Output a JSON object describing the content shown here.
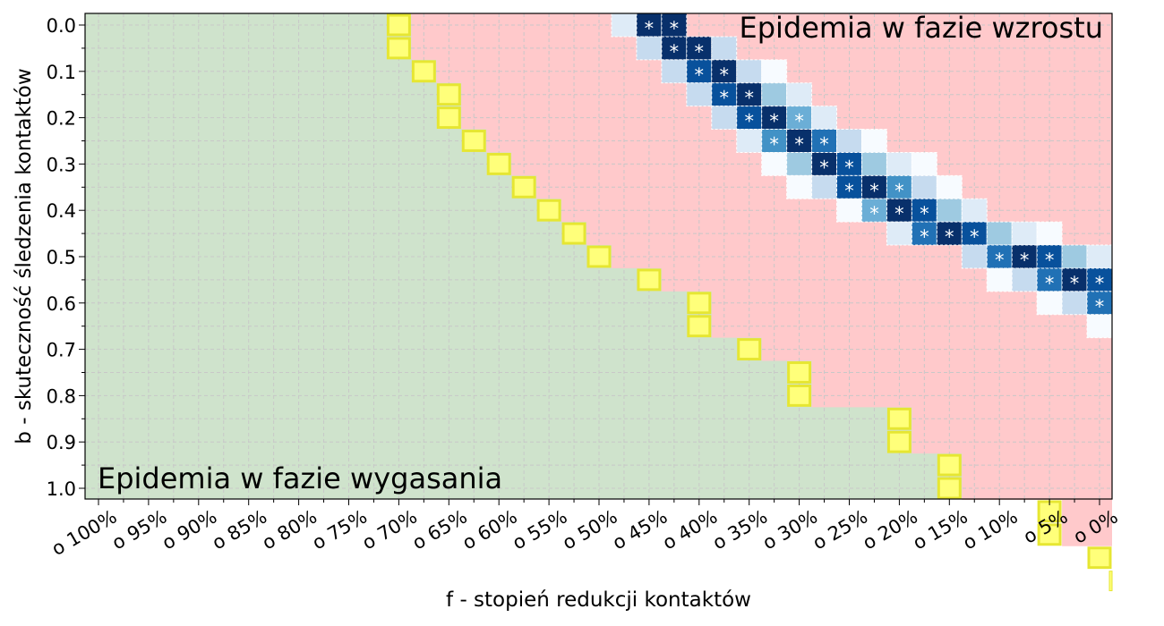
{
  "chart_data": {
    "type": "heatmap",
    "title": "",
    "xlabel": "f - stopień redukcji kontaktów",
    "ylabel": "b - skuteczność śledzenia kontaktów",
    "x_tick_labels": [
      "o 100%",
      "o 95%",
      "o 90%",
      "o 85%",
      "o 80%",
      "o 75%",
      "o 70%",
      "o 65%",
      "o 60%",
      "o 55%",
      "o 50%",
      "o 45%",
      "o 40%",
      "o 35%",
      "o 30%",
      "o 25%",
      "o 20%",
      "o 15%",
      "o 10%",
      "o 5%",
      "o 0%"
    ],
    "y_tick_labels": [
      "0.0",
      "0.1",
      "0.2",
      "0.3",
      "0.4",
      "0.5",
      "0.6",
      "0.7",
      "0.8",
      "0.9",
      "1.0"
    ],
    "x_range": [
      0,
      1
    ],
    "y_range": [
      0,
      1
    ],
    "y_inverted": true,
    "grid": true,
    "grid_step_x": 0.025,
    "grid_step_y": 0.05,
    "annotations": [
      "Epidemia w fazie wzrostu",
      "Epidemia w fazie wygasania"
    ],
    "colors": {
      "decline_region": "#cfe3cc",
      "growth_region": "#ffc9cb",
      "threshold_cell": "#ffff7a",
      "threshold_border": "#e6e632",
      "grid": "#c8c8c8",
      "blues": [
        "#f7fbff",
        "#deebf7",
        "#c6dbef",
        "#9ecae1",
        "#6baed6",
        "#4292c6",
        "#2171b5",
        "#08519c",
        "#08306b"
      ]
    },
    "boundary_f": [
      0.7,
      0.7,
      0.675,
      0.65,
      0.65,
      0.625,
      0.6,
      0.575,
      0.55,
      0.525,
      0.5,
      0.45,
      0.4,
      0.4,
      0.35,
      0.3,
      0.3,
      0.2,
      0.2,
      0.15,
      0.15,
      0.05,
      0.05,
      0.0,
      0.0
    ],
    "star_symbol": "*",
    "heat_cells": [
      {
        "b": 0.0,
        "f": 0.475,
        "level": 1,
        "star": false
      },
      {
        "b": 0.0,
        "f": 0.45,
        "level": 8,
        "star": true
      },
      {
        "b": 0.0,
        "f": 0.425,
        "level": 8,
        "star": true
      },
      {
        "b": 0.05,
        "f": 0.45,
        "level": 2,
        "star": false
      },
      {
        "b": 0.05,
        "f": 0.425,
        "level": 8,
        "star": true
      },
      {
        "b": 0.05,
        "f": 0.4,
        "level": 8,
        "star": true
      },
      {
        "b": 0.05,
        "f": 0.375,
        "level": 2,
        "star": false
      },
      {
        "b": 0.1,
        "f": 0.425,
        "level": 2,
        "star": false
      },
      {
        "b": 0.1,
        "f": 0.4,
        "level": 7,
        "star": true
      },
      {
        "b": 0.1,
        "f": 0.375,
        "level": 8,
        "star": true
      },
      {
        "b": 0.1,
        "f": 0.35,
        "level": 2,
        "star": false
      },
      {
        "b": 0.1,
        "f": 0.325,
        "level": 0,
        "star": false
      },
      {
        "b": 0.15,
        "f": 0.4,
        "level": 2,
        "star": false
      },
      {
        "b": 0.15,
        "f": 0.375,
        "level": 7,
        "star": true
      },
      {
        "b": 0.15,
        "f": 0.35,
        "level": 8,
        "star": true
      },
      {
        "b": 0.15,
        "f": 0.325,
        "level": 3,
        "star": false
      },
      {
        "b": 0.15,
        "f": 0.3,
        "level": 1,
        "star": false
      },
      {
        "b": 0.2,
        "f": 0.375,
        "level": 2,
        "star": false
      },
      {
        "b": 0.2,
        "f": 0.35,
        "level": 7,
        "star": true
      },
      {
        "b": 0.2,
        "f": 0.325,
        "level": 8,
        "star": true
      },
      {
        "b": 0.2,
        "f": 0.3,
        "level": 4,
        "star": true
      },
      {
        "b": 0.2,
        "f": 0.275,
        "level": 1,
        "star": false
      },
      {
        "b": 0.25,
        "f": 0.35,
        "level": 1,
        "star": false
      },
      {
        "b": 0.25,
        "f": 0.325,
        "level": 5,
        "star": true
      },
      {
        "b": 0.25,
        "f": 0.3,
        "level": 8,
        "star": true
      },
      {
        "b": 0.25,
        "f": 0.275,
        "level": 6,
        "star": true
      },
      {
        "b": 0.25,
        "f": 0.25,
        "level": 2,
        "star": false
      },
      {
        "b": 0.25,
        "f": 0.225,
        "level": 0,
        "star": false
      },
      {
        "b": 0.3,
        "f": 0.325,
        "level": 0,
        "star": false
      },
      {
        "b": 0.3,
        "f": 0.3,
        "level": 3,
        "star": false
      },
      {
        "b": 0.3,
        "f": 0.275,
        "level": 8,
        "star": true
      },
      {
        "b": 0.3,
        "f": 0.25,
        "level": 7,
        "star": true
      },
      {
        "b": 0.3,
        "f": 0.225,
        "level": 3,
        "star": false
      },
      {
        "b": 0.3,
        "f": 0.2,
        "level": 1,
        "star": false
      },
      {
        "b": 0.3,
        "f": 0.175,
        "level": 0,
        "star": false
      },
      {
        "b": 0.35,
        "f": 0.3,
        "level": 0,
        "star": false
      },
      {
        "b": 0.35,
        "f": 0.275,
        "level": 2,
        "star": false
      },
      {
        "b": 0.35,
        "f": 0.25,
        "level": 7,
        "star": true
      },
      {
        "b": 0.35,
        "f": 0.225,
        "level": 8,
        "star": true
      },
      {
        "b": 0.35,
        "f": 0.2,
        "level": 5,
        "star": true
      },
      {
        "b": 0.35,
        "f": 0.175,
        "level": 2,
        "star": false
      },
      {
        "b": 0.35,
        "f": 0.15,
        "level": 0,
        "star": false
      },
      {
        "b": 0.4,
        "f": 0.25,
        "level": 0,
        "star": false
      },
      {
        "b": 0.4,
        "f": 0.225,
        "level": 4,
        "star": true
      },
      {
        "b": 0.4,
        "f": 0.2,
        "level": 8,
        "star": true
      },
      {
        "b": 0.4,
        "f": 0.175,
        "level": 7,
        "star": true
      },
      {
        "b": 0.4,
        "f": 0.15,
        "level": 3,
        "star": false
      },
      {
        "b": 0.4,
        "f": 0.125,
        "level": 1,
        "star": false
      },
      {
        "b": 0.45,
        "f": 0.2,
        "level": 1,
        "star": false
      },
      {
        "b": 0.45,
        "f": 0.175,
        "level": 6,
        "star": true
      },
      {
        "b": 0.45,
        "f": 0.15,
        "level": 8,
        "star": true
      },
      {
        "b": 0.45,
        "f": 0.125,
        "level": 7,
        "star": true
      },
      {
        "b": 0.45,
        "f": 0.1,
        "level": 3,
        "star": false
      },
      {
        "b": 0.45,
        "f": 0.075,
        "level": 1,
        "star": false
      },
      {
        "b": 0.45,
        "f": 0.05,
        "level": 0,
        "star": false
      },
      {
        "b": 0.5,
        "f": 0.125,
        "level": 2,
        "star": false
      },
      {
        "b": 0.5,
        "f": 0.1,
        "level": 6,
        "star": true
      },
      {
        "b": 0.5,
        "f": 0.075,
        "level": 8,
        "star": true
      },
      {
        "b": 0.5,
        "f": 0.05,
        "level": 7,
        "star": true
      },
      {
        "b": 0.5,
        "f": 0.025,
        "level": 3,
        "star": false
      },
      {
        "b": 0.5,
        "f": 0.0,
        "level": 1,
        "star": false
      },
      {
        "b": 0.55,
        "f": 0.1,
        "level": 0,
        "star": false
      },
      {
        "b": 0.55,
        "f": 0.075,
        "level": 2,
        "star": false
      },
      {
        "b": 0.55,
        "f": 0.05,
        "level": 6,
        "star": true
      },
      {
        "b": 0.55,
        "f": 0.025,
        "level": 8,
        "star": true
      },
      {
        "b": 0.55,
        "f": 0.0,
        "level": 7,
        "star": true
      },
      {
        "b": 0.6,
        "f": 0.05,
        "level": 0,
        "star": false
      },
      {
        "b": 0.6,
        "f": 0.025,
        "level": 2,
        "star": false
      },
      {
        "b": 0.6,
        "f": 0.0,
        "level": 6,
        "star": true
      },
      {
        "b": 0.65,
        "f": 0.0,
        "level": 0,
        "star": false
      }
    ]
  }
}
